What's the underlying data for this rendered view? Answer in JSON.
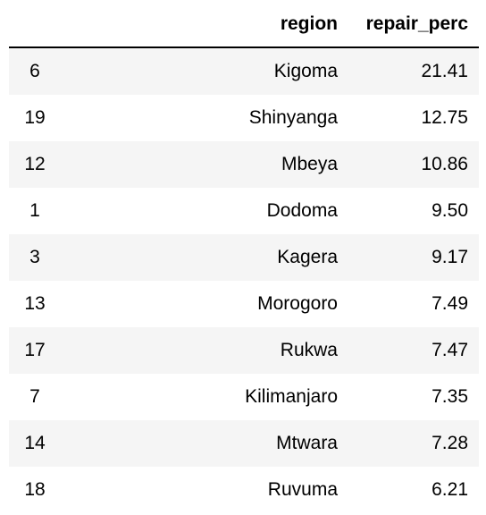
{
  "table": {
    "columns": [
      "",
      "region",
      "repair_perc"
    ],
    "rows": [
      {
        "index": "6",
        "region": "Kigoma",
        "repair_perc": "21.41"
      },
      {
        "index": "19",
        "region": "Shinyanga",
        "repair_perc": "12.75"
      },
      {
        "index": "12",
        "region": "Mbeya",
        "repair_perc": "10.86"
      },
      {
        "index": "1",
        "region": "Dodoma",
        "repair_perc": "9.50"
      },
      {
        "index": "3",
        "region": "Kagera",
        "repair_perc": "9.17"
      },
      {
        "index": "13",
        "region": "Morogoro",
        "repair_perc": "7.49"
      },
      {
        "index": "17",
        "region": "Rukwa",
        "repair_perc": "7.47"
      },
      {
        "index": "7",
        "region": "Kilimanjaro",
        "repair_perc": "7.35"
      },
      {
        "index": "14",
        "region": "Mtwara",
        "repair_perc": "7.28"
      },
      {
        "index": "18",
        "region": "Ruvuma",
        "repair_perc": "6.21"
      }
    ]
  }
}
